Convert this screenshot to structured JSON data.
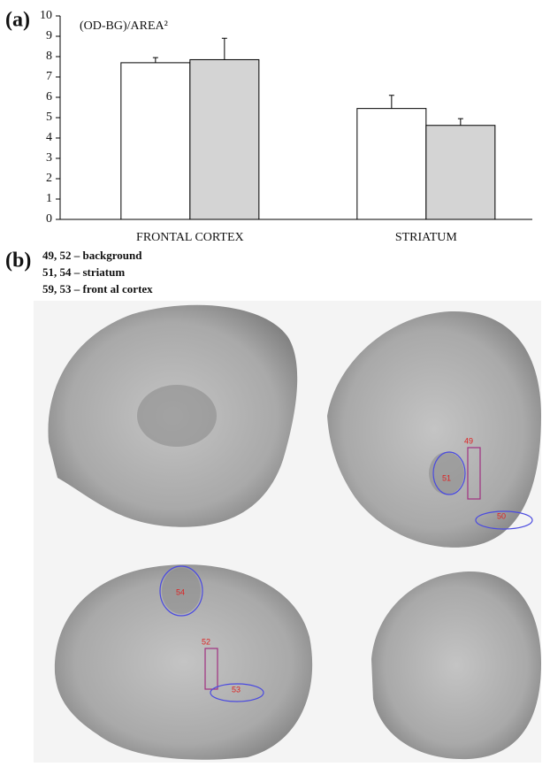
{
  "chart_data": {
    "type": "bar",
    "ylabel": "(OD-BG)/AREA²",
    "categories": [
      "FRONTAL CORTEX",
      "STRIATUM"
    ],
    "series": [
      {
        "color": "#ffffff",
        "values": [
          7.7,
          5.45
        ],
        "errors": [
          0.25,
          0.65
        ]
      },
      {
        "color": "#d4d4d4",
        "values": [
          7.85,
          4.62
        ],
        "errors": [
          1.05,
          0.33
        ]
      }
    ],
    "ylim": [
      0,
      10
    ],
    "yticks": [
      0,
      1,
      2,
      3,
      4,
      5,
      6,
      7,
      8,
      9,
      10
    ],
    "grid": false
  },
  "panel_labels": [
    "(a)",
    "(b)"
  ],
  "legend_lines": [
    "49, 52 – background",
    "51, 54 – striatum",
    "59, 53 – front al cortex"
  ],
  "image_labels": [
    "49",
    "51",
    "50",
    "52",
    "54",
    "53"
  ]
}
